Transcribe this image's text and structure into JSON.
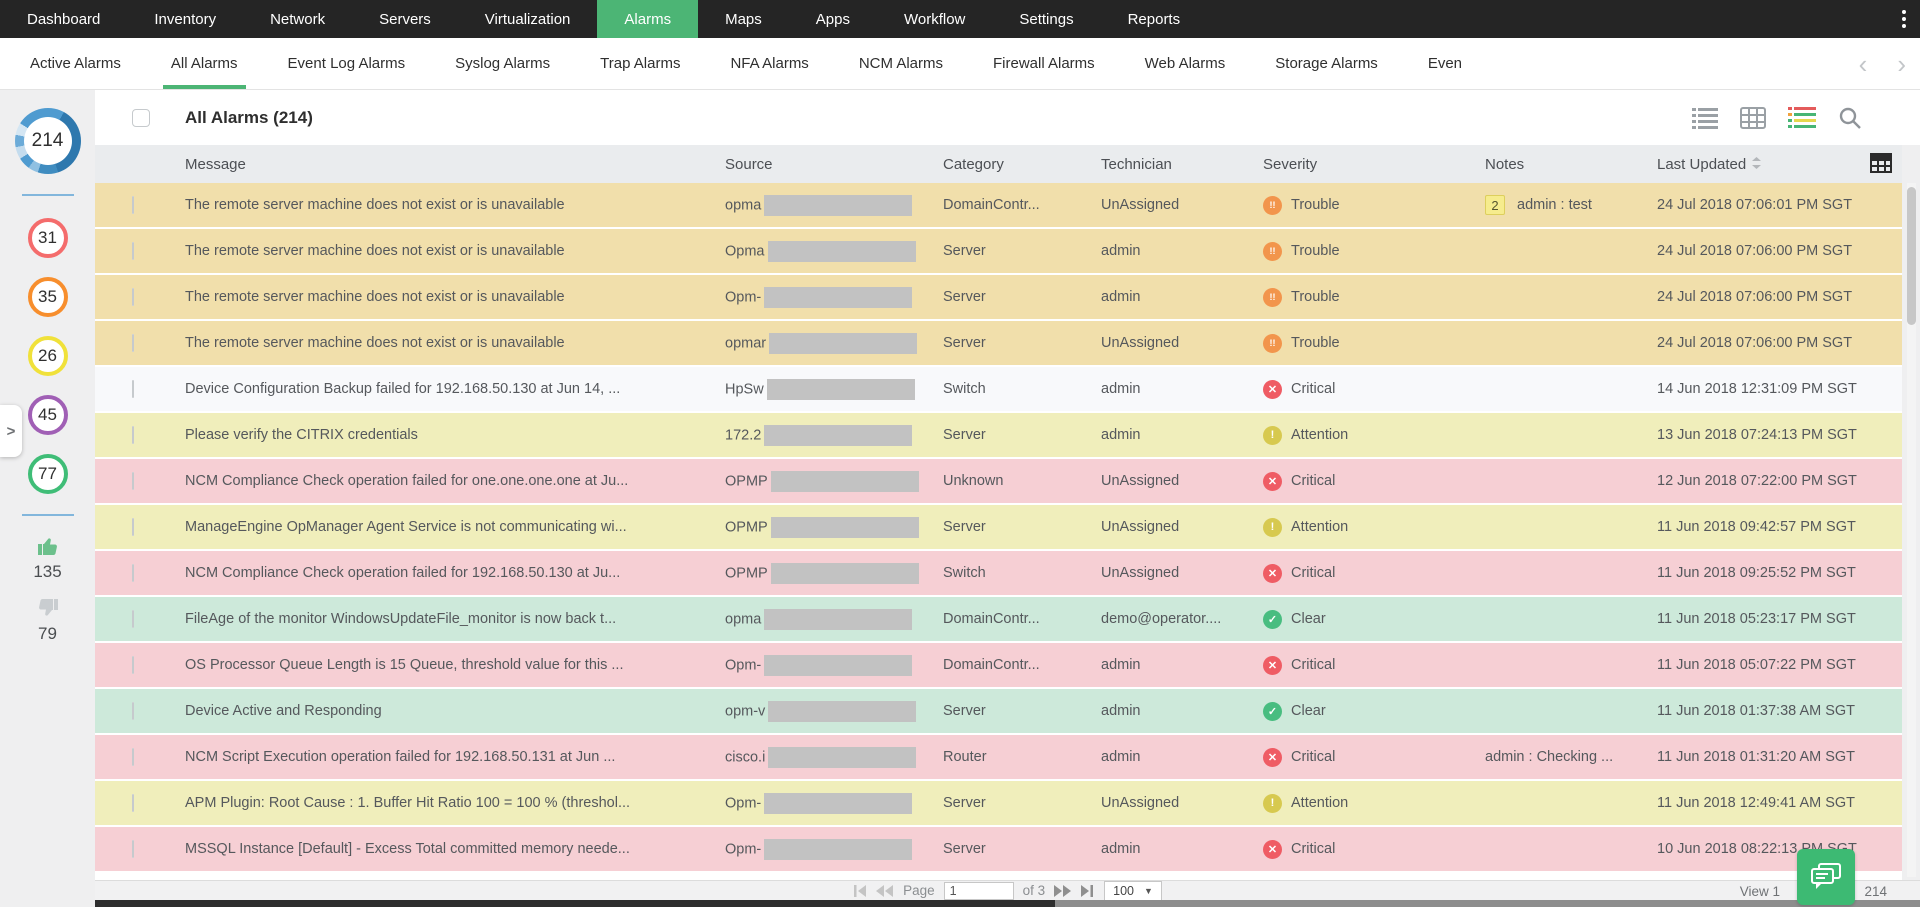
{
  "colors": {
    "accent": "#4cb575",
    "topnav-bg": "#252525",
    "severity_trouble": "#f2954c",
    "severity_critical": "#ef5c64",
    "severity_attention": "#d7c94f",
    "severity_clear": "#48bd80"
  },
  "topnav": {
    "items": [
      {
        "label": "Dashboard",
        "active": false
      },
      {
        "label": "Inventory",
        "active": false
      },
      {
        "label": "Network",
        "active": false
      },
      {
        "label": "Servers",
        "active": false
      },
      {
        "label": "Virtualization",
        "active": false
      },
      {
        "label": "Alarms",
        "active": true
      },
      {
        "label": "Maps",
        "active": false
      },
      {
        "label": "Apps",
        "active": false
      },
      {
        "label": "Workflow",
        "active": false
      },
      {
        "label": "Settings",
        "active": false
      },
      {
        "label": "Reports",
        "active": false
      }
    ],
    "overflow_menu_icon": "kebab-menu-icon"
  },
  "subnav": {
    "tabs": [
      {
        "label": "Active Alarms",
        "active": false
      },
      {
        "label": "All Alarms",
        "active": true
      },
      {
        "label": "Event Log Alarms",
        "active": false
      },
      {
        "label": "Syslog Alarms",
        "active": false
      },
      {
        "label": "Trap Alarms",
        "active": false
      },
      {
        "label": "NFA Alarms",
        "active": false
      },
      {
        "label": "NCM Alarms",
        "active": false
      },
      {
        "label": "Firewall Alarms",
        "active": false
      },
      {
        "label": "Web Alarms",
        "active": false
      },
      {
        "label": "Storage Alarms",
        "active": false
      },
      {
        "label": "Even",
        "active": false
      }
    ],
    "scroll_icons": [
      "chevron-left-icon",
      "chevron-right-icon"
    ]
  },
  "sidebar": {
    "total_badge": {
      "value": "214",
      "icon": "alarm-total-donut"
    },
    "count_badges": [
      {
        "value": "31",
        "color": "#f46c6c"
      },
      {
        "value": "35",
        "color": "#f78e2d"
      },
      {
        "value": "26",
        "color": "#f0e13a"
      },
      {
        "value": "45",
        "color": "#a05fb5"
      },
      {
        "value": "77",
        "color": "#3fbd77"
      }
    ],
    "thumbs_up": {
      "icon": "thumbs-up-icon",
      "count": "135",
      "color": "#6cc08c"
    },
    "thumbs_down": {
      "icon": "thumbs-down-icon",
      "count": "79",
      "color": "#c9cdd0"
    },
    "expand_handle_glyph": ">"
  },
  "panel": {
    "title": "All Alarms (214)",
    "toolbar_icons": [
      "list-view-icon",
      "table-view-icon",
      "severity-view-icon",
      "search-icon"
    ],
    "column_chooser_icon": "column-chooser-icon"
  },
  "table": {
    "columns": [
      {
        "label": "Message",
        "sortable": false
      },
      {
        "label": "Source",
        "sortable": false
      },
      {
        "label": "Category",
        "sortable": false
      },
      {
        "label": "Technician",
        "sortable": false
      },
      {
        "label": "Severity",
        "sortable": false
      },
      {
        "label": "Notes",
        "sortable": false
      },
      {
        "label": "Last Updated",
        "sortable": true
      }
    ],
    "severity_styles": {
      "Trouble": {
        "color": "#f2954c",
        "glyph": "!!"
      },
      "Critical": {
        "color": "#ef5c64",
        "glyph": "✕"
      },
      "Attention": {
        "color": "#d7c94f",
        "glyph": "!"
      },
      "Clear": {
        "color": "#48bd80",
        "glyph": "✓"
      }
    },
    "row_backgrounds": {
      "trouble": "#f1dfab",
      "critical": "#f6cfd4",
      "attention": "#f0eebb",
      "clear": "#cde9da",
      "plain": "#f8f9fb"
    },
    "rows": [
      {
        "message": "The remote server machine does not exist or is unavailable",
        "source_prefix": "opma",
        "redacted": true,
        "category": "DomainContr...",
        "technician": "UnAssigned",
        "severity": "Trouble",
        "notes_badge": "2",
        "notes": "admin : test",
        "last_updated": "24 Jul 2018 07:06:01 PM SGT",
        "tone": "trouble"
      },
      {
        "message": "The remote server machine does not exist or is unavailable",
        "source_prefix": "Opma",
        "redacted": true,
        "category": "Server",
        "technician": "admin",
        "severity": "Trouble",
        "notes_badge": "",
        "notes": "",
        "last_updated": "24 Jul 2018 07:06:00 PM SGT",
        "tone": "trouble"
      },
      {
        "message": "The remote server machine does not exist or is unavailable",
        "source_prefix": "Opm-",
        "redacted": true,
        "category": "Server",
        "technician": "admin",
        "severity": "Trouble",
        "notes_badge": "",
        "notes": "",
        "last_updated": "24 Jul 2018 07:06:00 PM SGT",
        "tone": "trouble"
      },
      {
        "message": "The remote server machine does not exist or is unavailable",
        "source_prefix": "opmar",
        "redacted": true,
        "category": "Server",
        "technician": "UnAssigned",
        "severity": "Trouble",
        "notes_badge": "",
        "notes": "",
        "last_updated": "24 Jul 2018 07:06:00 PM SGT",
        "tone": "trouble"
      },
      {
        "message": "Device Configuration Backup failed for 192.168.50.130 at Jun 14, ...",
        "source_prefix": "HpSw",
        "redacted": true,
        "category": "Switch",
        "technician": "admin",
        "severity": "Critical",
        "notes_badge": "",
        "notes": "",
        "last_updated": "14 Jun 2018 12:31:09 PM SGT",
        "tone": "plain"
      },
      {
        "message": "Please verify the CITRIX credentials",
        "source_prefix": "172.2",
        "redacted": true,
        "category": "Server",
        "technician": "admin",
        "severity": "Attention",
        "notes_badge": "",
        "notes": "",
        "last_updated": "13 Jun 2018 07:24:13 PM SGT",
        "tone": "attention"
      },
      {
        "message": "NCM Compliance Check operation failed for one.one.one.one at Ju...",
        "source_prefix": "OPMP",
        "redacted": true,
        "category": "Unknown",
        "technician": "UnAssigned",
        "severity": "Critical",
        "notes_badge": "",
        "notes": "",
        "last_updated": "12 Jun 2018 07:22:00 PM SGT",
        "tone": "critical"
      },
      {
        "message": "ManageEngine OpManager Agent Service is not communicating wi...",
        "source_prefix": "OPMP",
        "redacted": true,
        "category": "Server",
        "technician": "UnAssigned",
        "severity": "Attention",
        "notes_badge": "",
        "notes": "",
        "last_updated": "11 Jun 2018 09:42:57 PM SGT",
        "tone": "attention"
      },
      {
        "message": "NCM Compliance Check operation failed for 192.168.50.130 at Ju...",
        "source_prefix": "OPMP",
        "redacted": true,
        "category": "Switch",
        "technician": "UnAssigned",
        "severity": "Critical",
        "notes_badge": "",
        "notes": "",
        "last_updated": "11 Jun 2018 09:25:52 PM SGT",
        "tone": "critical"
      },
      {
        "message": "FileAge of the monitor WindowsUpdateFile_monitor is now back t...",
        "source_prefix": "opma",
        "redacted": true,
        "category": "DomainContr...",
        "technician": "demo@operator....",
        "severity": "Clear",
        "notes_badge": "",
        "notes": "",
        "last_updated": "11 Jun 2018 05:23:17 PM SGT",
        "tone": "clear"
      },
      {
        "message": "OS Processor Queue Length is 15 Queue, threshold value for this ...",
        "source_prefix": "Opm-",
        "redacted": true,
        "category": "DomainContr...",
        "technician": "admin",
        "severity": "Critical",
        "notes_badge": "",
        "notes": "",
        "last_updated": "11 Jun 2018 05:07:22 PM SGT",
        "tone": "critical"
      },
      {
        "message": "Device Active and Responding",
        "source_prefix": "opm-v",
        "redacted": true,
        "category": "Server",
        "technician": "admin",
        "severity": "Clear",
        "notes_badge": "",
        "notes": "",
        "last_updated": "11 Jun 2018 01:37:38 AM SGT",
        "tone": "clear"
      },
      {
        "message": "NCM Script Execution operation failed for 192.168.50.131 at Jun ...",
        "source_prefix": "cisco.i",
        "redacted": true,
        "category": "Router",
        "technician": "admin",
        "severity": "Critical",
        "notes_badge": "",
        "notes": "admin : Checking ...",
        "last_updated": "11 Jun 2018 01:31:20 AM SGT",
        "tone": "critical"
      },
      {
        "message": "APM Plugin: Root Cause : 1. Buffer Hit Ratio 100 = 100 % (threshol...",
        "source_prefix": "Opm-",
        "redacted": true,
        "category": "Server",
        "technician": "UnAssigned",
        "severity": "Attention",
        "notes_badge": "",
        "notes": "",
        "last_updated": "11 Jun 2018 12:49:41 AM SGT",
        "tone": "attention"
      },
      {
        "message": "MSSQL Instance [Default] - Excess Total committed memory neede...",
        "source_prefix": "Opm-",
        "redacted": true,
        "category": "Server",
        "technician": "admin",
        "severity": "Critical",
        "notes_badge": "",
        "notes": "",
        "last_updated": "10 Jun 2018 08:22:13 PM SGT",
        "tone": "critical"
      }
    ]
  },
  "pagination": {
    "page_label": "Page",
    "page_value": "1",
    "of_label": "of 3",
    "page_size": "100",
    "nav_icons": [
      "first-page-icon",
      "prev-page-icon",
      "next-page-icon",
      "last-page-icon"
    ],
    "view_prefix": "View 1",
    "view_suffix": "214",
    "chat_icon": "chat-icon"
  }
}
